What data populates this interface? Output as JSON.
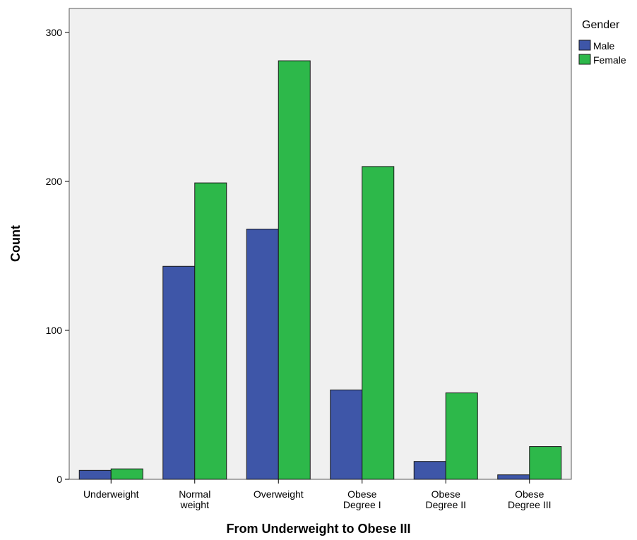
{
  "chart_data": {
    "type": "bar",
    "xlabel": "From Underweight to Obese III",
    "ylabel": "Count",
    "ylim": [
      0,
      300
    ],
    "yticks": [
      0,
      100,
      200,
      300
    ],
    "categories": [
      [
        "Underweight"
      ],
      [
        "Normal",
        "weight"
      ],
      [
        "Overweight"
      ],
      [
        "Obese",
        "Degree I"
      ],
      [
        "Obese",
        "Degree II"
      ],
      [
        "Obese",
        "Degree III"
      ]
    ],
    "series": [
      {
        "name": "Male",
        "color": "#3e56a8",
        "values": [
          6,
          143,
          168,
          60,
          12,
          3
        ]
      },
      {
        "name": "Female",
        "color": "#2db84a",
        "values": [
          7,
          199,
          281,
          210,
          58,
          22
        ]
      }
    ],
    "legend": {
      "title": "Gender",
      "position": "top-right"
    },
    "background": "#f0f0f0",
    "grid": false
  }
}
